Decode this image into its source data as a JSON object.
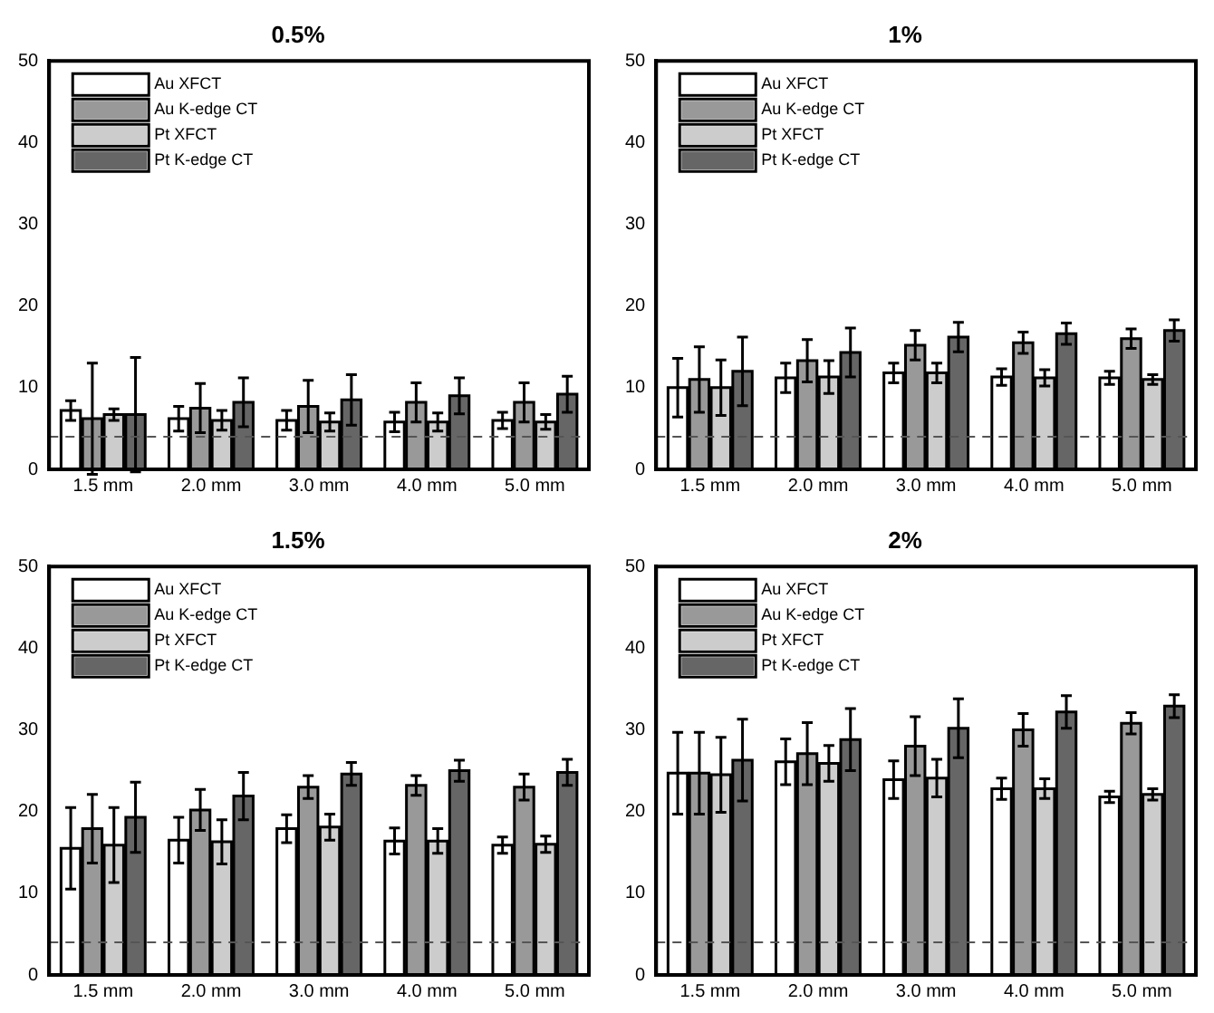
{
  "chart_data": [
    {
      "type": "bar",
      "title": "0.5%",
      "categories": [
        "1.5 mm",
        "2.0 mm",
        "3.0 mm",
        "4.0 mm",
        "5.0 mm"
      ],
      "ylim": [
        0,
        50
      ],
      "yticks": [
        0,
        10,
        20,
        30,
        40,
        50
      ],
      "grid": false,
      "legend": "top left",
      "ref_lines": [
        {
          "axis": "y",
          "value": 4,
          "color": "#555555",
          "line_style": "dashed"
        }
      ],
      "series": [
        {
          "name": "Au XFCT",
          "color": "#ffffff",
          "values": [
            7.2,
            6.2,
            6,
            5.8,
            6
          ],
          "errors": [
            1.2,
            1.5,
            1.2,
            1.2,
            1
          ]
        },
        {
          "name": "Au K-edge CT",
          "color": "#999999",
          "values": [
            6.2,
            7.5,
            7.7,
            8.2,
            8.2
          ],
          "errors": [
            6.8,
            3,
            3.2,
            2.4,
            2.4
          ]
        },
        {
          "name": "Pt XFCT",
          "color": "#cccccc",
          "values": [
            6.7,
            6,
            5.8,
            5.8,
            5.8
          ],
          "errors": [
            0.7,
            1.2,
            1.1,
            1.1,
            0.9
          ]
        },
        {
          "name": "Pt K-edge CT",
          "color": "#666666",
          "values": [
            6.7,
            8.2,
            8.5,
            9,
            9.2
          ],
          "errors": [
            7,
            3,
            3.1,
            2.2,
            2.2
          ]
        }
      ]
    },
    {
      "type": "bar",
      "title": "1%",
      "categories": [
        "1.5 mm",
        "2.0 mm",
        "3.0 mm",
        "4.0 mm",
        "5.0 mm"
      ],
      "ylim": [
        0,
        50
      ],
      "yticks": [
        0,
        10,
        20,
        30,
        40,
        50
      ],
      "grid": false,
      "legend": "top left",
      "ref_lines": [
        {
          "axis": "y",
          "value": 4,
          "color": "#555555",
          "line_style": "dashed"
        }
      ],
      "series": [
        {
          "name": "Au XFCT",
          "color": "#ffffff",
          "values": [
            10,
            11.2,
            11.8,
            11.3,
            11.2
          ],
          "errors": [
            3.6,
            1.8,
            1.2,
            1,
            0.8
          ]
        },
        {
          "name": "Au K-edge CT",
          "color": "#999999",
          "values": [
            11,
            13.3,
            15.2,
            15.5,
            16
          ],
          "errors": [
            4,
            2.6,
            1.8,
            1.3,
            1.2
          ]
        },
        {
          "name": "Pt XFCT",
          "color": "#cccccc",
          "values": [
            10,
            11.3,
            11.8,
            11.2,
            11
          ],
          "errors": [
            3.4,
            2,
            1.2,
            1,
            0.6
          ]
        },
        {
          "name": "Pt K-edge CT",
          "color": "#666666",
          "values": [
            12,
            14.3,
            16.2,
            16.6,
            17
          ],
          "errors": [
            4.2,
            3,
            1.8,
            1.3,
            1.3
          ]
        }
      ]
    },
    {
      "type": "bar",
      "title": "1.5%",
      "categories": [
        "1.5 mm",
        "2.0 mm",
        "3.0 mm",
        "4.0 mm",
        "5.0 mm"
      ],
      "ylim": [
        0,
        50
      ],
      "yticks": [
        0,
        10,
        20,
        30,
        40,
        50
      ],
      "grid": false,
      "legend": "top left",
      "ref_lines": [
        {
          "axis": "y",
          "value": 4,
          "color": "#555555",
          "line_style": "dashed"
        }
      ],
      "series": [
        {
          "name": "Au XFCT",
          "color": "#ffffff",
          "values": [
            15.5,
            16.5,
            17.9,
            16.4,
            15.9
          ],
          "errors": [
            5,
            2.8,
            1.7,
            1.6,
            1
          ]
        },
        {
          "name": "Au K-edge CT",
          "color": "#999999",
          "values": [
            17.9,
            20.2,
            23,
            23.2,
            23
          ],
          "errors": [
            4.2,
            2.5,
            1.4,
            1.2,
            1.6
          ]
        },
        {
          "name": "Pt XFCT",
          "color": "#cccccc",
          "values": [
            15.9,
            16.3,
            18.1,
            16.4,
            16
          ],
          "errors": [
            4.6,
            2.7,
            1.6,
            1.5,
            1
          ]
        },
        {
          "name": "Pt K-edge CT",
          "color": "#666666",
          "values": [
            19.3,
            21.9,
            24.6,
            25,
            24.8
          ],
          "errors": [
            4.3,
            2.9,
            1.4,
            1.3,
            1.6
          ]
        }
      ]
    },
    {
      "type": "bar",
      "title": "2%",
      "categories": [
        "1.5 mm",
        "2.0 mm",
        "3.0 mm",
        "4.0 mm",
        "5.0 mm"
      ],
      "ylim": [
        0,
        50
      ],
      "yticks": [
        0,
        10,
        20,
        30,
        40,
        50
      ],
      "grid": false,
      "legend": "top left",
      "ref_lines": [
        {
          "axis": "y",
          "value": 4,
          "color": "#555555",
          "line_style": "dashed"
        }
      ],
      "series": [
        {
          "name": "Au XFCT",
          "color": "#ffffff",
          "values": [
            24.7,
            26.1,
            23.9,
            22.8,
            21.8
          ],
          "errors": [
            5,
            2.8,
            2.3,
            1.3,
            0.7
          ]
        },
        {
          "name": "Au K-edge CT",
          "color": "#999999",
          "values": [
            24.7,
            27.1,
            28,
            30,
            30.8
          ],
          "errors": [
            5,
            3.8,
            3.6,
            2,
            1.3
          ]
        },
        {
          "name": "Pt XFCT",
          "color": "#cccccc",
          "values": [
            24.5,
            25.9,
            24.1,
            22.8,
            22.1
          ],
          "errors": [
            4.6,
            2.2,
            2.3,
            1.2,
            0.7
          ]
        },
        {
          "name": "Pt K-edge CT",
          "color": "#666666",
          "values": [
            26.3,
            28.8,
            30.2,
            32.2,
            32.9
          ],
          "errors": [
            5,
            3.8,
            3.6,
            2,
            1.4
          ]
        }
      ]
    }
  ]
}
